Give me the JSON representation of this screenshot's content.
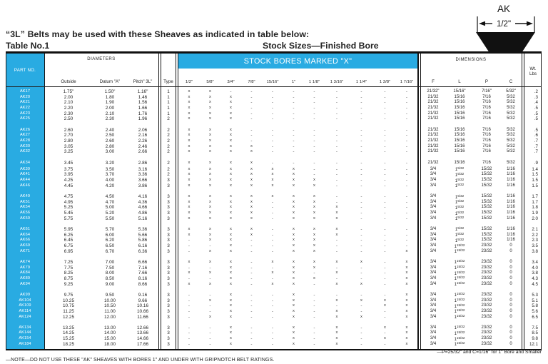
{
  "page": {
    "title": "“3L” Belts may be used with these Sheaves as indicated in table below:",
    "table_label": "Table No.1",
    "subtitle": "Stock Sizes—Finished Bore",
    "accent_color": "#29abe2"
  },
  "belt_diagram": {
    "label": "AK",
    "width_label": "1/2\""
  },
  "table": {
    "headers": {
      "part_no": "PART NO.",
      "diameters": "DIAMETERS",
      "outside": "Outside",
      "datum": "Datum \"A\"",
      "pitch": "Pitch\" 3L\"",
      "type": "Type",
      "stock_bores_banner": "STOCK BORES MARKED \"X\"",
      "bores": [
        "1/2\"",
        "5/8\"",
        "3/4\"",
        "7/8\"",
        "15/16\"",
        "1\"",
        "1 1/8\"",
        "1 3/16\"",
        "1 1/4\"",
        "1 3/8\"",
        "1 7/16\""
      ],
      "dimensions": "DIMENSIONS",
      "dim_cols": [
        "F",
        "L",
        "P",
        "C"
      ],
      "wt_line1": "Wt.",
      "wt_line2": "Lbs"
    },
    "row_fields": [
      "part_no",
      "outside",
      "datum_a",
      "pitch_3l",
      "type",
      "stock_bores_x_pattern",
      "f",
      "l",
      "p",
      "c",
      "wt_lbs"
    ],
    "groups": [
      [
        [
          "AK17",
          "1.75\"",
          "1.50\"",
          "1.16\"",
          "1",
          "xx---------",
          "21/32\"",
          "15/16\"",
          "7/16\"",
          "5/32\"",
          ".2"
        ],
        [
          "AK20",
          "2.00",
          "1.80",
          "1.46",
          "1",
          "xxx--------",
          "21/32",
          "15/16",
          "7/16",
          "5/32",
          ".3"
        ],
        [
          "AK21",
          "2.10",
          "1.90",
          "1.56",
          "1",
          "xxx--------",
          "21/32",
          "15/16",
          "7/16",
          "5/32",
          ".4"
        ],
        [
          "AK22",
          "2.20",
          "2.00",
          "1.66",
          "1",
          "xxx--------",
          "21/32",
          "15/16",
          "7/16",
          "5/32",
          ".5"
        ],
        [
          "AK23",
          "2.30",
          "2.10",
          "1.76",
          "1",
          "xxx--------",
          "21/32",
          "15/16",
          "7/16",
          "5/32",
          ".5"
        ],
        [
          "AK25",
          "2.50",
          "2.30",
          "1.96",
          "2",
          "xxx--------",
          "21/32",
          "15/16",
          "7/16",
          "5/32",
          ".5"
        ]
      ],
      [
        [
          "AK26",
          "2.60",
          "2.40",
          "2.06",
          "2",
          "xxx--------",
          "21/32",
          "15/16",
          "7/16",
          "5/32",
          ".5"
        ],
        [
          "AK27",
          "2.70",
          "2.50",
          "2.16",
          "2",
          "xxx--------",
          "21/32",
          "15/16",
          "7/16",
          "5/32",
          ".6"
        ],
        [
          "AK28",
          "2.80",
          "2.60",
          "2.26",
          "2",
          "xxx--------",
          "21/32",
          "15/16",
          "7/16",
          "5/32",
          ".7"
        ],
        [
          "AK30",
          "3.05",
          "2.80",
          "2.46",
          "2",
          "xxxx-------",
          "21/32",
          "15/16",
          "7/16",
          "5/32",
          ".7"
        ],
        [
          "AK32",
          "3.25",
          "3.00",
          "2.66",
          "2",
          "xxxx-------",
          "21/32",
          "15/16",
          "7/16",
          "5/32",
          ".7"
        ]
      ],
      [
        [
          "AK34",
          "3.45",
          "3.20",
          "2.86",
          "2",
          "xxxx-------",
          "21/32",
          "15/16",
          "7/16",
          "5/32",
          ".9"
        ],
        [
          "AK39",
          "3.75",
          "3.50",
          "3.16",
          "2",
          "xxxxxx-----",
          "3/4",
          "1 5/32",
          "15/32",
          "1/16",
          "1.4"
        ],
        [
          "AK41",
          "3.95",
          "3.70",
          "3.36",
          "2",
          "xxxxxx-----",
          "3/4",
          "1 5/32",
          "15/32",
          "1/16",
          "1.5"
        ],
        [
          "AK44",
          "4.25",
          "4.00",
          "3.66",
          "3",
          "xxxxxxx----",
          "3/4",
          "1 5/32",
          "15/32",
          "1/16",
          "1.5"
        ],
        [
          "AK46",
          "4.45",
          "4.20",
          "3.86",
          "3",
          "xxxxxxx----",
          "3/4",
          "1 5/32",
          "15/32",
          "1/16",
          "1.5"
        ]
      ],
      [
        [
          "AK49",
          "4.75",
          "4.50",
          "4.16",
          "3",
          "xxxxxxx----",
          "3/4",
          "1 5/32",
          "15/32",
          "1/16",
          "1.7"
        ],
        [
          "AK51",
          "4.95",
          "4.70",
          "4.36",
          "3",
          "xxxx-xx----",
          "3/4",
          "1 5/32",
          "15/32",
          "1/16",
          "1.7"
        ],
        [
          "AK54",
          "5.25",
          "5.00",
          "4.66",
          "3",
          "xxxx-xxx---",
          "3/4",
          "1 5/32",
          "15/32",
          "1/16",
          "1.8"
        ],
        [
          "AK56",
          "5.45",
          "5.20",
          "4.86",
          "3",
          "xxxx-xxx---",
          "3/4",
          "1 5/32",
          "15/32",
          "1/16",
          "1.9"
        ],
        [
          "AK59",
          "5.75",
          "5.50",
          "5.16",
          "3",
          "xxxx-xxx---",
          "3/4",
          "1 5/32",
          "15/32",
          "1/16",
          "2.0"
        ]
      ],
      [
        [
          "AK61",
          "5.95",
          "5.70",
          "5.36",
          "3",
          "xxxx-xxx---",
          "3/4",
          "1 5/32",
          "15/32",
          "1/16",
          "2.1"
        ],
        [
          "AK64",
          "6.25",
          "6.00",
          "5.66",
          "3",
          "xxxx-xxx---",
          "3/4",
          "1 5/32",
          "15/32",
          "1/16",
          "2.2"
        ],
        [
          "AK66",
          "6.45",
          "6.20",
          "5.86",
          "3",
          "-xx--xx----",
          "3/4",
          "1 5/32",
          "15/32",
          "1/16",
          "2.3"
        ],
        [
          "AK69",
          "6.75",
          "6.50",
          "6.16",
          "3",
          "--x--xx----",
          "3/4",
          "1 15/32",
          "23/32",
          "0",
          "3.5"
        ],
        [
          "AK71",
          "6.95",
          "6.70",
          "6.36",
          "3",
          "-xx--xx---x",
          "3/4",
          "1 15/32",
          "23/32",
          "0",
          "3.8"
        ]
      ],
      [
        [
          "AK74",
          "7.25",
          "7.00",
          "6.66",
          "3",
          "xxx-xxxxx-x",
          "3/4",
          "1 15/32",
          "23/32",
          "0",
          "3.4"
        ],
        [
          "AK79",
          "7.75",
          "7.50",
          "7.16",
          "3",
          "--x--xx---x",
          "3/4",
          "1 15/32",
          "23/32",
          "0",
          "4.0"
        ],
        [
          "AK84",
          "8.25",
          "8.00",
          "7.66",
          "3",
          "xxx-xx-x--x",
          "3/4",
          "1 15/32",
          "23/32",
          "0",
          "3.8"
        ],
        [
          "AK89",
          "8.75",
          "8.50",
          "8.16",
          "3",
          "--x--xx---x",
          "3/4",
          "1 15/32",
          "23/32",
          "0",
          "4.3"
        ],
        [
          "AK94",
          "9.25",
          "9.00",
          "8.66",
          "3",
          "xxx-xx-xx-x",
          "3/4",
          "1 15/32",
          "23/32",
          "0",
          "4.5"
        ]
      ],
      [
        [
          "AK99",
          "9.75",
          "9.50",
          "9.16",
          "3",
          "--x--x----x",
          "3/4",
          "1 15/32",
          "23/32",
          "0",
          "5.3"
        ],
        [
          "AK104",
          "10.25",
          "10.00",
          "9.66",
          "3",
          "-xx--x-xxxx",
          "3/4",
          "1 15/32",
          "23/32",
          "0",
          "5.1"
        ],
        [
          "AK109",
          "10.75",
          "10.50",
          "10.16",
          "3",
          "--x--x---xx",
          "3/4",
          "1 15/32",
          "23/32",
          "0",
          "5.8"
        ],
        [
          "AK114",
          "11.25",
          "11.00",
          "10.66",
          "3",
          "--x--x-x--x",
          "3/4",
          "1 15/32",
          "23/32",
          "0",
          "5.6"
        ],
        [
          "AK124",
          "12.25",
          "12.00",
          "11.66",
          "3",
          "-xx--x-xx-x",
          "3/4",
          "1 15/32",
          "23/32",
          "0",
          "6.5"
        ]
      ],
      [
        [
          "AK134",
          "13.25",
          "13.00",
          "12.66",
          "3",
          "--x--x-x-xx",
          "3/4",
          "1 15/32",
          "23/32",
          "0",
          "7.5"
        ],
        [
          "AK144",
          "14.25",
          "14.00",
          "13.66",
          "3",
          "--x--x-x--x",
          "3/4",
          "1 15/32",
          "23/32",
          "0",
          "8.5"
        ],
        [
          "AK154",
          "15.25",
          "15.00",
          "14.66",
          "3",
          "--x--x-x-xx",
          "3/4",
          "1 15/32",
          "23/32",
          "0",
          "9.8"
        ],
        [
          "AK184",
          "18.25",
          "18.00",
          "17.66",
          "3",
          "--x--x-x--x",
          "3/4",
          "1 15/32",
          "23/32",
          "0",
          "12.1"
        ]
      ]
    ]
  },
  "footnotes": {
    "right": "—P=25/32\" and C=1/16\" for 1\" Bore and Smaller",
    "left": "—NOTE—DO NOT USE THESE \"AK\" SHEAVES WITH BORES 1\" AND UNDER WITH GRIPNOTCH BELT RATINGS."
  }
}
